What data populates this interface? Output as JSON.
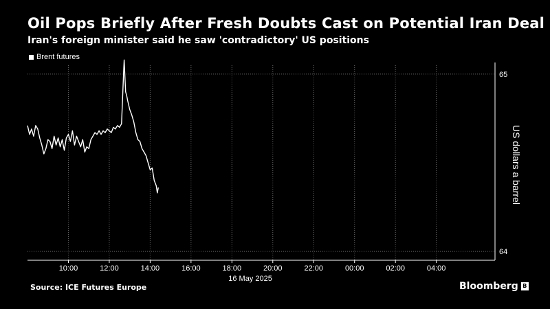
{
  "header": {
    "title": "Oil Pops Briefly After Fresh Doubts Cast on Potential Iran Deal",
    "subtitle": "Iran's foreign minister said he saw 'contradictory' US positions"
  },
  "footer": {
    "source": "Source: ICE Futures Europe",
    "brand": "Bloomberg"
  },
  "colors": {
    "background": "#000000",
    "line": "#ffffff",
    "grid": "#666666",
    "text": "#ffffff"
  },
  "chart_data": {
    "type": "line",
    "ylabel": "US dollars a barrel",
    "y_axis_side": "right",
    "ylim": [
      63.95,
      65.05
    ],
    "yticks": [
      64,
      65
    ],
    "xlim": [
      8.0,
      6.4
    ],
    "x_unit": "hour of day",
    "xticks": [
      {
        "value": 10,
        "label": "10:00"
      },
      {
        "value": 12,
        "label": "12:00"
      },
      {
        "value": 14,
        "label": "14:00"
      },
      {
        "value": 16,
        "label": "16:00"
      },
      {
        "value": 18,
        "label": "18:00"
      },
      {
        "value": 20,
        "label": "20:00"
      },
      {
        "value": 22,
        "label": "22:00"
      },
      {
        "value": 24,
        "label": "00:00"
      },
      {
        "value": 26,
        "label": "02:00"
      },
      {
        "value": 28,
        "label": "04:00"
      }
    ],
    "date_label": "16 May 2025",
    "grid": "dotted",
    "legend_position": "top-left",
    "series": [
      {
        "name": "Brent futures",
        "x": [
          8.0,
          8.1,
          8.2,
          8.3,
          8.4,
          8.5,
          8.6,
          8.7,
          8.8,
          8.9,
          9.0,
          9.1,
          9.2,
          9.3,
          9.4,
          9.5,
          9.6,
          9.7,
          9.8,
          9.9,
          10.0,
          10.1,
          10.2,
          10.3,
          10.4,
          10.5,
          10.6,
          10.7,
          10.8,
          10.9,
          11.0,
          11.1,
          11.2,
          11.3,
          11.4,
          11.5,
          11.6,
          11.7,
          11.8,
          11.9,
          12.0,
          12.1,
          12.2,
          12.3,
          12.4,
          12.5,
          12.6,
          12.7,
          12.73,
          12.77,
          12.8,
          12.85,
          12.9,
          13.0,
          13.1,
          13.2,
          13.3,
          13.4,
          13.5,
          13.6,
          13.7,
          13.8,
          13.9,
          14.0,
          14.1,
          14.2,
          14.3,
          14.35,
          14.4
        ],
        "values": [
          64.71,
          64.66,
          64.69,
          64.65,
          64.71,
          64.69,
          64.64,
          64.6,
          64.55,
          64.58,
          64.63,
          64.62,
          64.58,
          64.65,
          64.6,
          64.64,
          64.59,
          64.63,
          64.57,
          64.64,
          64.66,
          64.62,
          64.68,
          64.6,
          64.65,
          64.62,
          64.59,
          64.63,
          64.56,
          64.59,
          64.58,
          64.63,
          64.65,
          64.67,
          64.66,
          64.68,
          64.66,
          64.68,
          64.67,
          64.69,
          64.68,
          64.67,
          64.7,
          64.69,
          64.71,
          64.7,
          64.72,
          65.0,
          65.08,
          64.98,
          64.9,
          64.88,
          64.85,
          64.8,
          64.77,
          64.73,
          64.67,
          64.63,
          64.62,
          64.58,
          64.56,
          64.54,
          64.5,
          64.46,
          64.47,
          64.4,
          64.37,
          64.33,
          64.36
        ]
      }
    ]
  }
}
